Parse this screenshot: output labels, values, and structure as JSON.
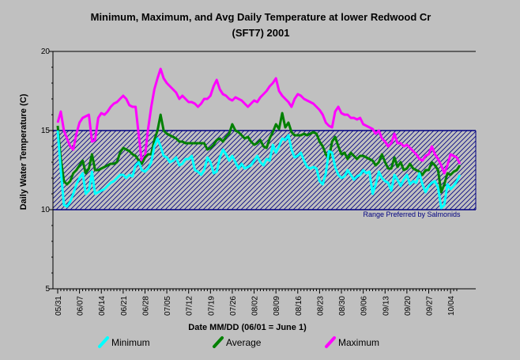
{
  "chart_data": {
    "type": "line",
    "title_line1": "Minimum, Maximum, and Avg Daily Temperature at  lower Redwood Cr",
    "title_line2": "(SFT7) 2001",
    "xlabel": "Date MM/DD (06/01 = June 1)",
    "ylabel": "Daily Water Temperature (C)",
    "ylim": [
      5,
      20
    ],
    "y_ticks": [
      "5",
      "10",
      "15",
      "20"
    ],
    "x_ticks": [
      "05/31",
      "06/07",
      "06/14",
      "06/21",
      "06/28",
      "07/05",
      "07/12",
      "07/19",
      "07/26",
      "08/02",
      "08/09",
      "08/16",
      "08/23",
      "08/30",
      "09/06",
      "09/13",
      "09/20",
      "09/27",
      "10/04"
    ],
    "x_range_days": [
      0,
      128
    ],
    "preferred_range": {
      "low": 10,
      "high": 15,
      "label": "Range Preferred by Salmonids",
      "color": "#000080"
    },
    "grid": false,
    "legend_position": "bottom",
    "series": [
      {
        "name": "Minimum",
        "color": "#00ffff",
        "values": [
          15.0,
          12.5,
          10.3,
          10.2,
          10.5,
          11.0,
          11.6,
          12.0,
          12.3,
          11.0,
          11.2,
          12.4,
          11.0,
          11.1,
          11.2,
          11.3,
          11.5,
          11.7,
          11.8,
          12.0,
          12.2,
          12.2,
          12.0,
          12.2,
          12.1,
          12.8,
          13.0,
          12.5,
          12.4,
          12.6,
          13.0,
          14.0,
          14.5,
          14.0,
          13.4,
          13.3,
          13.0,
          13.1,
          13.3,
          12.8,
          12.9,
          13.2,
          13.2,
          13.4,
          12.5,
          12.4,
          12.2,
          12.5,
          13.3,
          13.0,
          12.3,
          12.4,
          13.3,
          13.8,
          13.5,
          13.1,
          13.4,
          13.0,
          12.6,
          12.9,
          12.6,
          12.7,
          12.8,
          13.1,
          13.4,
          13.0,
          12.8,
          13.2,
          13.1,
          14.1,
          13.6,
          14.0,
          14.5,
          14.4,
          14.7,
          13.8,
          13.3,
          13.4,
          13.6,
          13.1,
          12.7,
          12.6,
          12.7,
          12.6,
          11.8,
          11.6,
          12.3,
          13.7,
          13.6,
          12.7,
          12.2,
          12.0,
          12.1,
          12.5,
          12.2,
          11.9,
          12.1,
          12.2,
          12.5,
          12.3,
          12.4,
          11.0,
          11.6,
          12.4,
          12.0,
          11.8,
          11.7,
          11.2,
          12.2,
          11.9,
          11.5,
          11.9,
          12.2,
          11.6,
          11.8,
          11.7,
          12.3,
          11.6,
          11.1,
          11.5,
          11.7,
          11.8,
          11.4,
          10.1,
          10.3,
          11.6,
          11.3,
          11.5,
          11.8,
          12.2
        ]
      },
      {
        "name": "Average",
        "color": "#008000",
        "values": [
          15.3,
          13.2,
          11.8,
          11.6,
          11.8,
          12.3,
          12.5,
          12.8,
          13.1,
          12.3,
          12.6,
          13.5,
          12.5,
          12.5,
          12.6,
          12.7,
          12.8,
          12.9,
          12.9,
          13.0,
          13.6,
          13.9,
          13.8,
          13.7,
          13.5,
          13.4,
          13.1,
          12.9,
          13.3,
          13.5,
          13.5,
          14.4,
          15.0,
          16.0,
          15.0,
          14.8,
          14.7,
          14.6,
          14.5,
          14.3,
          14.3,
          14.2,
          14.2,
          14.2,
          14.2,
          14.2,
          14.2,
          14.2,
          13.8,
          13.9,
          14.1,
          14.4,
          14.5,
          14.3,
          14.6,
          14.8,
          15.4,
          15.0,
          14.9,
          14.7,
          14.5,
          14.6,
          14.3,
          14.1,
          14.2,
          14.4,
          14.0,
          13.9,
          14.5,
          14.9,
          15.4,
          15.1,
          16.1,
          15.2,
          15.5,
          14.9,
          14.7,
          14.7,
          14.7,
          14.8,
          14.7,
          14.8,
          14.9,
          14.8,
          14.3,
          14.0,
          13.5,
          13.2,
          14.3,
          14.6,
          14.0,
          13.5,
          13.6,
          13.2,
          13.6,
          13.4,
          13.2,
          13.4,
          13.4,
          13.3,
          13.2,
          13.1,
          12.8,
          13.0,
          13.5,
          13.0,
          12.6,
          12.6,
          13.3,
          12.7,
          13.0,
          12.5,
          12.6,
          12.9,
          12.6,
          12.5,
          12.4,
          12.2,
          12.5,
          12.5,
          13.0,
          12.8,
          12.5,
          11.1,
          11.6,
          12.3,
          12.2,
          12.4,
          12.5,
          12.8
        ]
      },
      {
        "name": "Maximum",
        "color": "#ff00ff",
        "values": [
          15.5,
          16.2,
          15.0,
          14.5,
          14.0,
          13.8,
          14.8,
          15.5,
          15.8,
          15.9,
          16.0,
          14.3,
          14.4,
          15.8,
          16.1,
          16.0,
          16.2,
          16.5,
          16.7,
          16.8,
          17.0,
          17.2,
          17.0,
          16.6,
          16.5,
          16.5,
          14.7,
          13.0,
          13.4,
          15.1,
          16.5,
          17.6,
          18.3,
          18.9,
          18.3,
          18.0,
          17.8,
          17.6,
          17.4,
          17.0,
          17.2,
          17.0,
          16.8,
          16.8,
          16.7,
          16.5,
          16.7,
          17.0,
          17.0,
          17.2,
          17.8,
          18.2,
          17.6,
          17.3,
          17.2,
          17.0,
          16.9,
          17.1,
          17.0,
          16.9,
          16.7,
          16.5,
          16.7,
          16.9,
          16.8,
          17.1,
          17.3,
          17.5,
          17.8,
          18.0,
          18.3,
          17.5,
          17.2,
          17.0,
          16.8,
          16.5,
          17.0,
          17.3,
          17.2,
          17.0,
          16.9,
          16.8,
          16.7,
          16.5,
          16.3,
          16.0,
          15.5,
          15.3,
          15.2,
          16.2,
          16.5,
          16.1,
          16.0,
          16.0,
          15.8,
          15.8,
          15.7,
          15.8,
          15.4,
          15.3,
          15.2,
          15.1,
          14.8,
          15.0,
          14.5,
          14.3,
          14.0,
          14.2,
          14.8,
          14.2,
          14.2,
          14.0,
          14.1,
          13.9,
          13.7,
          13.5,
          13.2,
          13.1,
          13.4,
          13.5,
          14.0,
          13.5,
          13.2,
          12.8,
          12.3,
          12.8,
          13.5,
          13.4,
          13.3,
          12.9
        ]
      }
    ]
  }
}
